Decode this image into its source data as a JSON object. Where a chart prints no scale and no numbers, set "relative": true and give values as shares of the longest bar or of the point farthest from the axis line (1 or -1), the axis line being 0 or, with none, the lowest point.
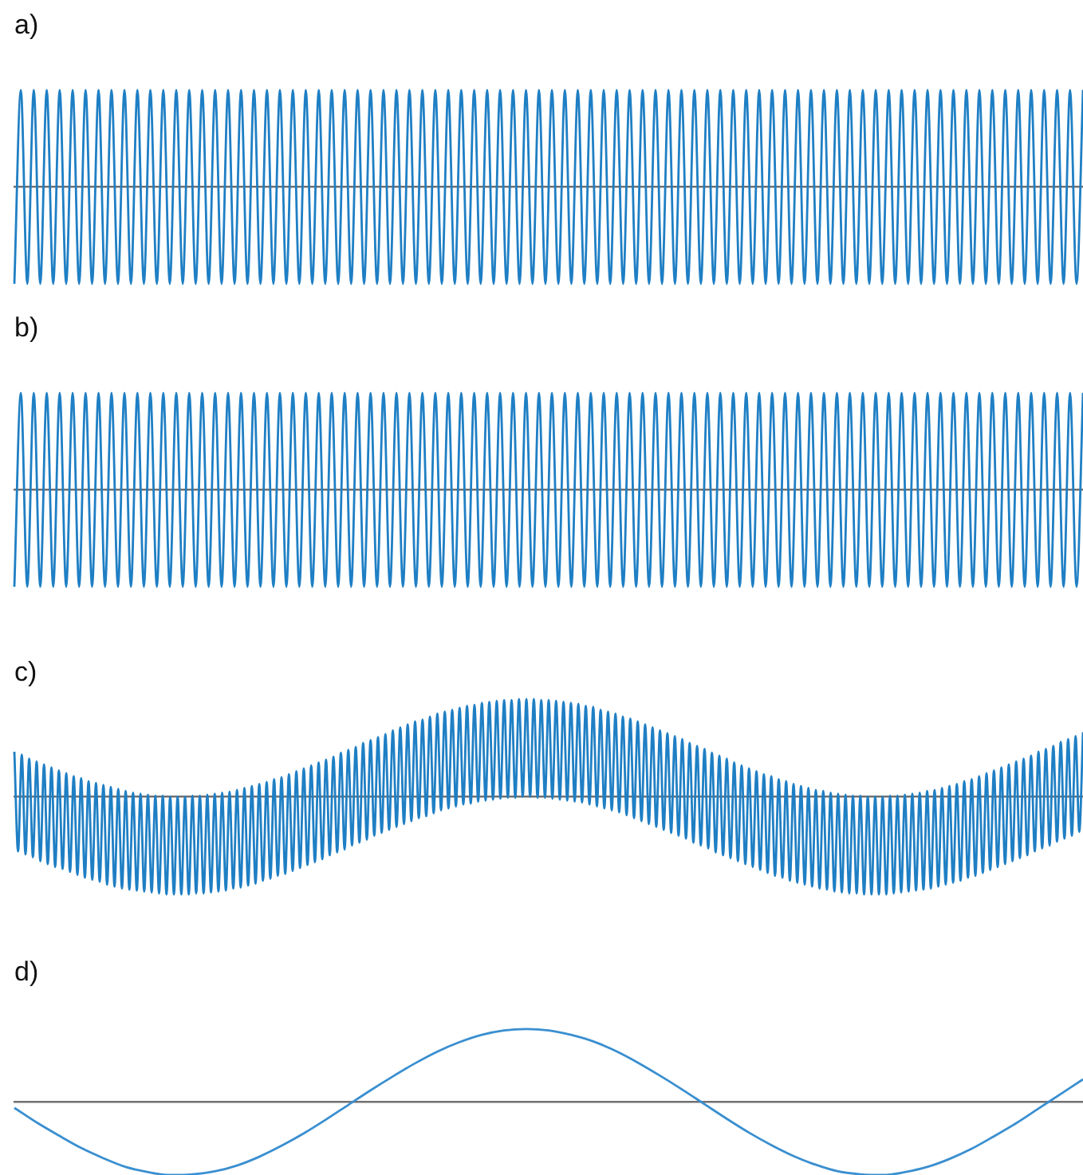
{
  "chart_data": [
    {
      "type": "line",
      "title": "a)",
      "relative": true,
      "tick_labels": false,
      "marker": "none",
      "color": "#1f7fc4",
      "categories": [
        null,
        null,
        null,
        null,
        null,
        null,
        null,
        null,
        null,
        null,
        null,
        null,
        null,
        null,
        null,
        null,
        null,
        null,
        null,
        null,
        null,
        null,
        null,
        null,
        null,
        null,
        null,
        null,
        null,
        null,
        null,
        null,
        null,
        null,
        null,
        null,
        null,
        null,
        null,
        null,
        null,
        null,
        null,
        null,
        null,
        null,
        null,
        null,
        null,
        null,
        null,
        null,
        null,
        null,
        null,
        null,
        null,
        null,
        null,
        null,
        null,
        null,
        null,
        null,
        null,
        null,
        null,
        null,
        null,
        null,
        null,
        null,
        null,
        null,
        null,
        null,
        null,
        null,
        null,
        null,
        null,
        null,
        null,
        null,
        null,
        null,
        null,
        null,
        null,
        null,
        null,
        null,
        null,
        null,
        null,
        null,
        null,
        null,
        null,
        null,
        null,
        null,
        null,
        null,
        null,
        null,
        null,
        null,
        null,
        null,
        null,
        null,
        null,
        null,
        null,
        null,
        null,
        null,
        null,
        null,
        null,
        null,
        null,
        null,
        null,
        null,
        null,
        null,
        null,
        null,
        null,
        null,
        null,
        null,
        null,
        null,
        null,
        null,
        null,
        null,
        null,
        null,
        null,
        null,
        null,
        null,
        null,
        null,
        null,
        null,
        null,
        null,
        null,
        null,
        null,
        null,
        null,
        null,
        null,
        null,
        null,
        null,
        null,
        null,
        null,
        null
      ],
      "values": [
        -1,
        1,
        -1,
        1,
        -1,
        1,
        -1,
        1,
        -1,
        1,
        -1,
        1,
        -1,
        1,
        -1,
        1,
        -1,
        1,
        -1,
        1,
        -1,
        1,
        -1,
        1,
        -1,
        1,
        -1,
        1,
        -1,
        1,
        -1,
        1,
        -1,
        1,
        -1,
        1,
        -1,
        1,
        -1,
        1,
        -1,
        1,
        -1,
        1,
        -1,
        1,
        -1,
        1,
        -1,
        1,
        -1,
        1,
        -1,
        1,
        -1,
        1,
        -1,
        1,
        -1,
        1,
        -1,
        1,
        -1,
        1,
        -1,
        1,
        -1,
        1,
        -1,
        1,
        -1,
        1,
        -1,
        1,
        -1,
        1,
        -1,
        1,
        -1,
        1,
        -1,
        1,
        -1,
        1,
        -1,
        1,
        -1,
        1,
        -1,
        1,
        -1,
        1,
        -1,
        1,
        -1,
        1,
        -1,
        1,
        -1,
        1,
        -1,
        1,
        -1,
        1,
        -1,
        1,
        -1,
        1,
        -1,
        1,
        -1,
        1,
        -1,
        1,
        -1,
        1,
        -1,
        1,
        -1,
        1,
        -1,
        1,
        -1,
        1,
        -1,
        1,
        -1,
        1,
        -1,
        1,
        -1,
        1,
        -1,
        1,
        -1,
        1,
        -1,
        1,
        -1,
        1,
        -1,
        1,
        -1,
        1,
        -1,
        1,
        -1,
        1,
        -1,
        1,
        -1,
        1,
        -1,
        1,
        -1,
        1,
        -1,
        1,
        -1,
        1,
        -1,
        1,
        -1,
        1,
        -1,
        1
      ]
    },
    {
      "type": "line",
      "title": "b)",
      "relative": true,
      "tick_labels": false,
      "marker": "none",
      "color": "#1f7fc4",
      "categories": [
        null,
        null,
        null,
        null,
        null,
        null,
        null,
        null,
        null,
        null,
        null,
        null,
        null,
        null,
        null,
        null,
        null,
        null,
        null,
        null,
        null,
        null,
        null,
        null,
        null,
        null,
        null,
        null,
        null,
        null,
        null,
        null,
        null,
        null,
        null,
        null,
        null,
        null,
        null,
        null,
        null,
        null,
        null,
        null,
        null,
        null,
        null,
        null,
        null,
        null,
        null,
        null,
        null,
        null,
        null,
        null,
        null,
        null,
        null,
        null,
        null,
        null,
        null,
        null,
        null,
        null,
        null,
        null,
        null,
        null,
        null,
        null,
        null,
        null,
        null,
        null,
        null,
        null,
        null,
        null,
        null,
        null,
        null,
        null,
        null,
        null,
        null,
        null,
        null,
        null,
        null,
        null,
        null,
        null,
        null,
        null,
        null,
        null,
        null,
        null,
        null,
        null,
        null,
        null,
        null,
        null,
        null,
        null,
        null,
        null,
        null,
        null,
        null,
        null,
        null,
        null,
        null,
        null,
        null,
        null,
        null,
        null,
        null,
        null,
        null,
        null,
        null,
        null,
        null,
        null,
        null,
        null,
        null,
        null,
        null,
        null,
        null,
        null,
        null,
        null,
        null,
        null,
        null,
        null,
        null,
        null,
        null,
        null,
        null,
        null,
        null,
        null,
        null,
        null,
        null,
        null,
        null,
        null,
        null,
        null,
        null,
        null,
        null,
        null,
        null,
        null
      ],
      "values": [
        -1,
        1,
        -1,
        1,
        -1,
        1,
        -1,
        1,
        -1,
        1,
        -1,
        1,
        -1,
        1,
        -1,
        1,
        -1,
        1,
        -1,
        1,
        -1,
        1,
        -1,
        1,
        -1,
        1,
        -1,
        1,
        -1,
        1,
        -1,
        1,
        -1,
        1,
        -1,
        1,
        -1,
        1,
        -1,
        1,
        -1,
        1,
        -1,
        1,
        -1,
        1,
        -1,
        1,
        -1,
        1,
        -1,
        1,
        -1,
        1,
        -1,
        1,
        -1,
        1,
        -1,
        1,
        -1,
        1,
        -1,
        1,
        -1,
        1,
        -1,
        1,
        -1,
        1,
        -1,
        1,
        -1,
        1,
        -1,
        1,
        -1,
        1,
        -1,
        1,
        -1,
        1,
        -1,
        1,
        -1,
        1,
        -1,
        1,
        -1,
        1,
        -1,
        1,
        -1,
        1,
        -1,
        1,
        -1,
        1,
        -1,
        1,
        -1,
        1,
        -1,
        1,
        -1,
        1,
        -1,
        1,
        -1,
        1,
        -1,
        1,
        -1,
        1,
        -1,
        1,
        -1,
        1,
        -1,
        1,
        -1,
        1,
        -1,
        1,
        -1,
        1,
        -1,
        1,
        -1,
        1,
        -1,
        1,
        -1,
        1,
        -1,
        1,
        -1,
        1,
        -1,
        1,
        -1,
        1,
        -1,
        1,
        -1,
        1,
        -1,
        1,
        -1,
        1,
        -1,
        1,
        -1,
        1,
        -1,
        1,
        -1,
        1,
        -1,
        1,
        -1,
        1,
        -1,
        1,
        -1,
        1
      ]
    },
    {
      "type": "line",
      "title": "c)",
      "relative": true,
      "tick_labels": false,
      "marker": "none",
      "color": "#1f7fc4",
      "categories": [
        null,
        null,
        null,
        null,
        null,
        null,
        null,
        null,
        null,
        null,
        null,
        null,
        null,
        null,
        null,
        null,
        null,
        null,
        null,
        null,
        null,
        null,
        null,
        null,
        null,
        null,
        null,
        null,
        null,
        null,
        null,
        null,
        null,
        null,
        null,
        null,
        null,
        null,
        null,
        null,
        null,
        null,
        null,
        null,
        null,
        null,
        null,
        null,
        null,
        null,
        null,
        null,
        null,
        null,
        null,
        null,
        null,
        null,
        null,
        null,
        null,
        null,
        null,
        null,
        null,
        null,
        null,
        null,
        null,
        null,
        null,
        null,
        null,
        null,
        null,
        null,
        null,
        null,
        null,
        null,
        null,
        null,
        null,
        null,
        null,
        null,
        null,
        null,
        null,
        null,
        null,
        null,
        null,
        null,
        null,
        null,
        null,
        null,
        null,
        null,
        null,
        null,
        null,
        null,
        null,
        null,
        null,
        null,
        null,
        null,
        null,
        null,
        null,
        null,
        null,
        null,
        null,
        null,
        null,
        null,
        null,
        null,
        null,
        null,
        null,
        null,
        null,
        null,
        null,
        null,
        null,
        null,
        null,
        null,
        null,
        null,
        null,
        null,
        null,
        null,
        null,
        null,
        null,
        null,
        null,
        null,
        null,
        null,
        null,
        null,
        null,
        null,
        null,
        null,
        null,
        null,
        null,
        null,
        null,
        null,
        null,
        null,
        null,
        null,
        null,
        null,
        null,
        null,
        null,
        null,
        null,
        null,
        null,
        null,
        null,
        null,
        null,
        null,
        null,
        null,
        null,
        null,
        null,
        null,
        null,
        null,
        null,
        null,
        null,
        null,
        null,
        null,
        null,
        null,
        null,
        null,
        null,
        null,
        null,
        null,
        null,
        null,
        null,
        null,
        null,
        null,
        null,
        null,
        null,
        null,
        null,
        null,
        null,
        null,
        null,
        null,
        null,
        null,
        null,
        null,
        null,
        null,
        null,
        null,
        null,
        null,
        null,
        null,
        null,
        null,
        null,
        null,
        null,
        null,
        null,
        null,
        null,
        null,
        null,
        null,
        null,
        null,
        null,
        null,
        null,
        null,
        null,
        null,
        null,
        null,
        null,
        null,
        null,
        null,
        null,
        null,
        null,
        null,
        null,
        null,
        null,
        null,
        null,
        null,
        null,
        null,
        null,
        null,
        null,
        null,
        null,
        null,
        null,
        null,
        null,
        null,
        null,
        null,
        null,
        null,
        null,
        null,
        null,
        null,
        null,
        null,
        null,
        null,
        null
      ],
      "values": [
        0.46,
        -0.56,
        0.43,
        -0.59,
        0.39,
        -0.62,
        0.36,
        -0.66,
        0.33,
        -0.69,
        0.3,
        -0.72,
        0.27,
        -0.74,
        0.24,
        -0.77,
        0.21,
        -0.8,
        0.19,
        -0.83,
        0.16,
        -0.85,
        0.14,
        -0.87,
        0.12,
        -0.9,
        0.1,
        -0.92,
        0.08,
        -0.94,
        0.06,
        -0.95,
        0.04,
        -0.96,
        0.03,
        -0.97,
        0.02,
        -0.98,
        0.01,
        -0.99,
        0.01,
        -1,
        0,
        -1,
        0,
        -1,
        0,
        -1,
        0.01,
        -0.99,
        0.01,
        -0.99,
        0.02,
        -0.98,
        0.03,
        -0.97,
        0.04,
        -0.96,
        0.05,
        -0.94,
        0.07,
        -0.93,
        0.09,
        -0.91,
        0.11,
        -0.89,
        0.13,
        -0.86,
        0.15,
        -0.84,
        0.18,
        -0.81,
        0.2,
        -0.79,
        0.23,
        -0.76,
        0.26,
        -0.73,
        0.29,
        -0.7,
        0.32,
        -0.67,
        0.35,
        -0.64,
        0.38,
        -0.6,
        0.41,
        -0.57,
        0.45,
        -0.54,
        0.48,
        -0.5,
        0.51,
        -0.47,
        0.55,
        -0.44,
        0.58,
        -0.4,
        0.61,
        -0.37,
        0.64,
        -0.34,
        0.68,
        -0.31,
        0.71,
        -0.28,
        0.74,
        -0.25,
        0.77,
        -0.22,
        0.79,
        -0.2,
        0.82,
        -0.17,
        0.85,
        -0.14,
        0.87,
        -0.12,
        0.89,
        -0.1,
        0.91,
        -0.08,
        0.93,
        -0.07,
        0.94,
        -0.05,
        0.96,
        -0.04,
        0.97,
        -0.03,
        0.98,
        -0.02,
        0.99,
        -0.01,
        0.99,
        -0.01,
        1,
        0,
        1,
        0,
        1,
        -0.01,
        0.99,
        -0.01,
        0.99,
        -0.02,
        0.98,
        -0.03,
        0.97,
        -0.04,
        0.96,
        -0.05,
        0.95,
        -0.06,
        0.93,
        -0.08,
        0.92,
        -0.1,
        0.89,
        -0.12,
        0.87,
        -0.14,
        0.85,
        -0.16,
        0.82,
        -0.19,
        0.8,
        -0.22,
        0.77,
        -0.25,
        0.74,
        -0.28,
        0.71,
        -0.31,
        0.68,
        -0.34,
        0.65,
        -0.37,
        0.62,
        -0.4,
        0.59,
        -0.43,
        0.55,
        -0.47,
        0.52,
        -0.5,
        0.49,
        -0.53,
        0.45,
        -0.57,
        0.42,
        -0.6,
        0.39,
        -0.63,
        0.35,
        -0.66,
        0.32,
        -0.69,
        0.29,
        -0.72,
        0.26,
        -0.75,
        0.23,
        -0.78,
        0.21,
        -0.81,
        0.18,
        -0.83,
        0.16,
        -0.86,
        0.13,
        -0.88,
        0.11,
        -0.9,
        0.09,
        -0.92,
        0.07,
        -0.94,
        0.06,
        -0.95,
        0.04,
        -0.97,
        0.03,
        -0.98,
        0.02,
        -0.99,
        0.01,
        -0.99,
        0.01,
        -1,
        0,
        -1,
        0,
        -1,
        0,
        -1,
        0.01,
        -0.99,
        0.01,
        -0.98,
        0.02,
        -0.97,
        0.03,
        -0.96,
        0.04,
        -0.95,
        0.06,
        -0.94,
        0.07,
        -0.92,
        0.09,
        -0.9,
        0.11,
        -0.88,
        0.13,
        -0.86,
        0.16,
        -0.83,
        0.18,
        -0.81,
        0.21,
        -0.78,
        0.24,
        -0.75,
        0.27,
        -0.72,
        0.3,
        -0.69,
        0.33,
        -0.66,
        0.36,
        -0.63,
        0.39,
        -0.6,
        0.42,
        -0.56,
        0.46,
        -0.53,
        0.49,
        -0.5,
        0.52,
        -0.46,
        0.56,
        -0.43,
        0.59,
        -0.4,
        0.62,
        -0.36,
        0.66
      ]
    },
    {
      "type": "line",
      "title": "d)",
      "relative": true,
      "tick_labels": false,
      "marker": "none",
      "color": "#3a8fd0",
      "categories": [
        null,
        null,
        null,
        null,
        null,
        null,
        null,
        null,
        null,
        null,
        null,
        null,
        null,
        null,
        null,
        null,
        null,
        null,
        null,
        null,
        null,
        null,
        null,
        null,
        null,
        null,
        null,
        null,
        null,
        null,
        null,
        null,
        null,
        null,
        null,
        null,
        null,
        null,
        null,
        null,
        null,
        null,
        null,
        null,
        null,
        null,
        null,
        null,
        null
      ],
      "values": [
        -0.08,
        -0.28,
        -0.46,
        -0.63,
        -0.77,
        -0.89,
        -0.96,
        -1,
        -0.99,
        -0.95,
        -0.87,
        -0.75,
        -0.6,
        -0.43,
        -0.24,
        -0.04,
        0.16,
        0.35,
        0.53,
        0.69,
        0.82,
        0.92,
        0.98,
        1,
        0.98,
        0.92,
        0.83,
        0.7,
        0.54,
        0.36,
        0.17,
        -0.03,
        -0.23,
        -0.42,
        -0.59,
        -0.74,
        -0.86,
        -0.95,
        -0.99,
        -1,
        -0.96,
        -0.89,
        -0.78,
        -0.64,
        -0.47,
        -0.29,
        -0.09,
        0.11,
        0.31
      ]
    }
  ]
}
